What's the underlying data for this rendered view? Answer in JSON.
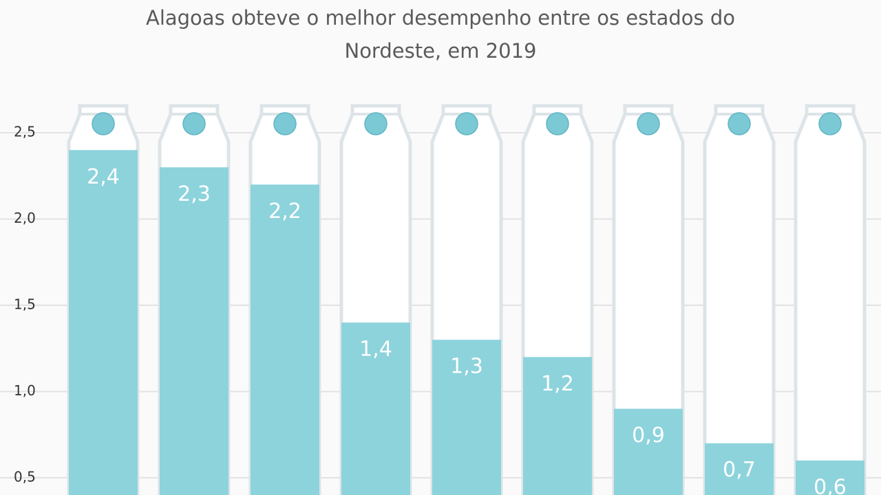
{
  "chart_data": {
    "type": "bar",
    "title": "Alagoas obteve o melhor desempenho entre os estados do Nordeste, em 2019",
    "values": [
      2.4,
      2.3,
      2.2,
      1.4,
      1.3,
      1.2,
      0.9,
      0.7,
      0.6
    ],
    "value_labels": [
      "2,4",
      "2,3",
      "2,2",
      "1,4",
      "1,3",
      "1,2",
      "0,9",
      "0,7",
      "0,6"
    ],
    "color": "#8dd3dc",
    "ylim": [
      0.4,
      3.27
    ],
    "yticks": [
      {
        "value": 0.5,
        "label": "0,5"
      },
      {
        "value": 1.0,
        "label": "1,0"
      },
      {
        "value": 1.5,
        "label": "1,5"
      },
      {
        "value": 2.0,
        "label": "2,0"
      },
      {
        "value": 2.5,
        "label": "2,5"
      }
    ],
    "grid": true
  }
}
